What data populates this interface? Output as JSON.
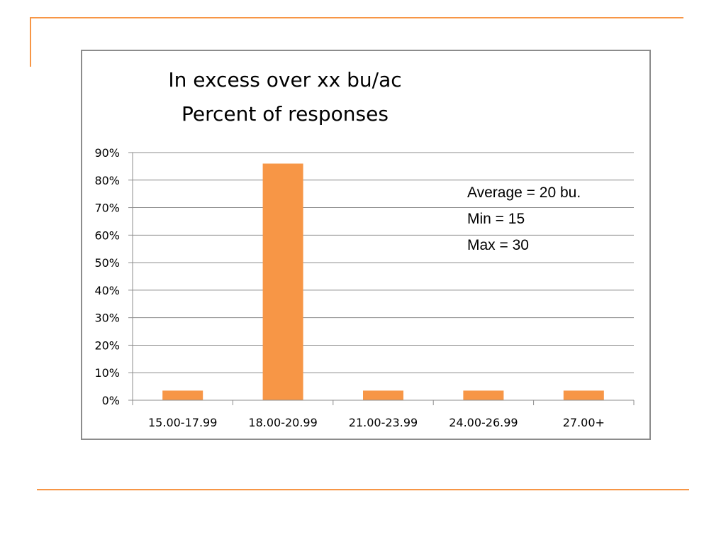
{
  "colors": {
    "accent": "#f79646",
    "bar": "#f79646",
    "grid": "#8c8c8c",
    "frame": "#8c8c8c"
  },
  "chart_data": {
    "type": "bar",
    "title_lines": [
      "In excess over xx bu/ac",
      "Percent of responses"
    ],
    "categories": [
      "15.00-17.99",
      "18.00-20.99",
      "21.00-23.99",
      "24.00-26.99",
      "27.00+"
    ],
    "values": [
      3.5,
      86,
      3.5,
      3.5,
      3.5
    ],
    "ylim": [
      0,
      90
    ],
    "yticks": [
      "0%",
      "10%",
      "20%",
      "30%",
      "40%",
      "50%",
      "60%",
      "70%",
      "80%",
      "90%"
    ],
    "grid": true,
    "annotations": [
      "Average = 20 bu.",
      "Min = 15",
      "Max = 30"
    ]
  }
}
